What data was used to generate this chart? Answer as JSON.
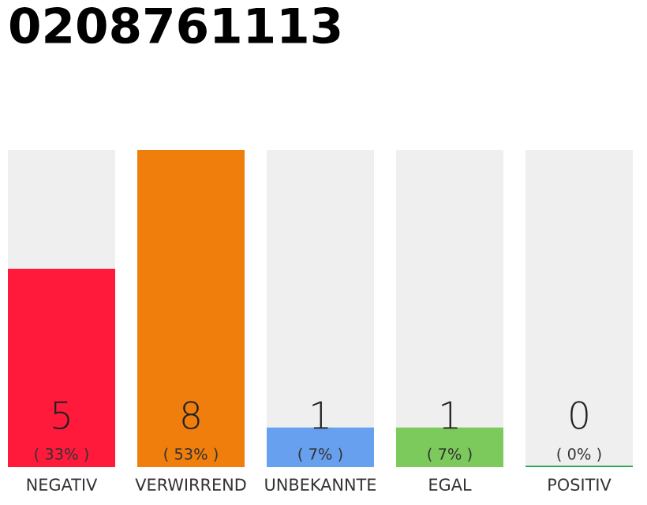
{
  "chart_data": {
    "type": "bar",
    "title": "0208761113",
    "categories": [
      "NEGATIV",
      "VERWIRREND",
      "UNBEKANNTE",
      "EGAL",
      "POSITIV"
    ],
    "stacked": true,
    "ylim": [
      0,
      8
    ],
    "grid": false,
    "legend": false,
    "series": [
      {
        "colors": [
          "#ff1a3c",
          "#f07e0c",
          "#67a0ee",
          "#7dca5c",
          "#22a045"
        ],
        "values": [
          5,
          8,
          1,
          1,
          0
        ],
        "value_labels": [
          "5",
          "8",
          "1",
          "1",
          "0"
        ]
      },
      {
        "color": "#efefef",
        "values": [
          3,
          0,
          7,
          7,
          8
        ]
      }
    ],
    "annotations": [
      {
        "text": "( 33% )",
        "x": "NEGATIV",
        "y": 0
      },
      {
        "text": "( 53% )",
        "x": "VERWIRREND",
        "y": 0
      },
      {
        "text": "( 7% )",
        "x": "UNBEKANNTE",
        "y": 0
      },
      {
        "text": "( 7% )",
        "x": "EGAL",
        "y": 0
      },
      {
        "text": "( 0% )",
        "x": "POSITIV",
        "y": 0
      }
    ]
  }
}
